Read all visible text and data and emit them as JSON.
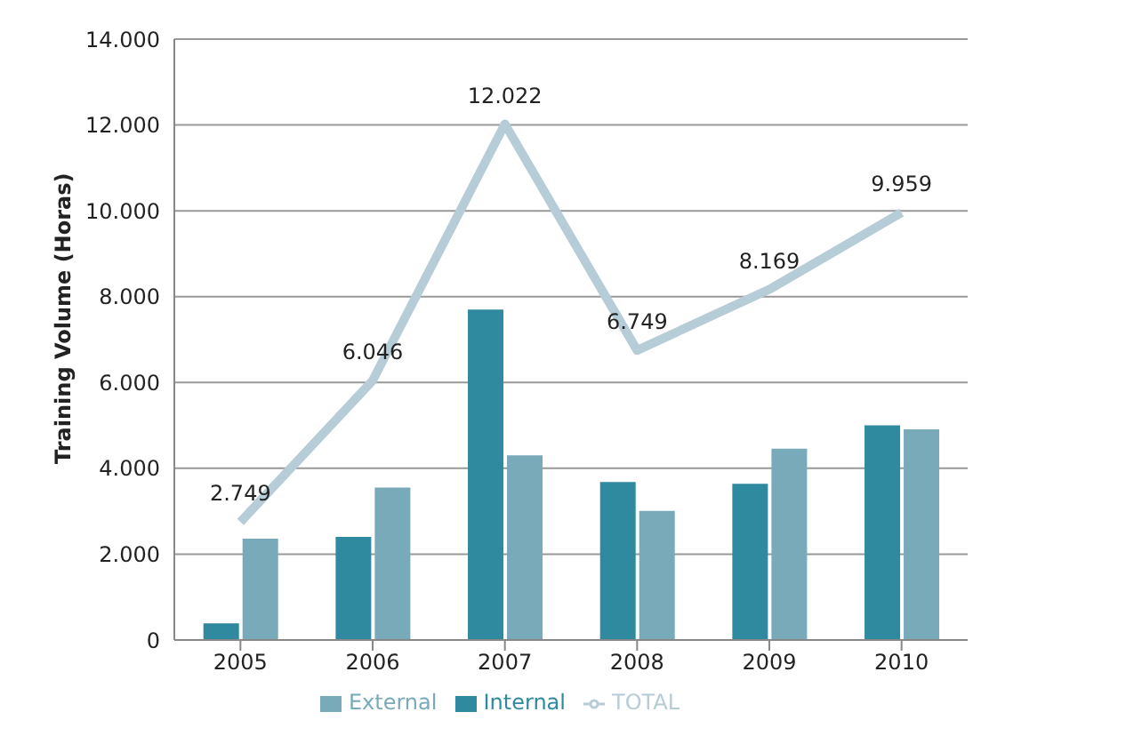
{
  "chart_data": {
    "type": "bar",
    "ylabel": "Training Volume  (Horas)",
    "categories": [
      "2005",
      "2006",
      "2007",
      "2008",
      "2009",
      "2010"
    ],
    "series": [
      {
        "name": "Internal",
        "color": "#2f8aa0",
        "values": [
          390,
          2400,
          7700,
          3680,
          3640,
          5000
        ]
      },
      {
        "name": "External",
        "color": "#78aab9",
        "values": [
          2360,
          3550,
          4300,
          3010,
          4460,
          4910
        ]
      },
      {
        "name": "TOTAL",
        "type": "line",
        "color": "#b6ccd6",
        "values": [
          2749,
          6046,
          12022,
          6749,
          8169,
          9959
        ],
        "value_labels": [
          "2.749",
          "6.046",
          "12.022",
          "6.749",
          "8.169",
          "9.959"
        ]
      }
    ],
    "ylim": [
      0,
      14000
    ],
    "yticks": [
      {
        "value": 0,
        "label": "0"
      },
      {
        "value": 2000,
        "label": "2.000"
      },
      {
        "value": 4000,
        "label": "4.000"
      },
      {
        "value": 6000,
        "label": "6.000"
      },
      {
        "value": 8000,
        "label": "8.000"
      },
      {
        "value": 10000,
        "label": "10.000"
      },
      {
        "value": 12000,
        "label": "12.000"
      },
      {
        "value": 14000,
        "label": "14.000"
      }
    ],
    "grid": "y",
    "legend": "bottom",
    "marker": "none"
  }
}
